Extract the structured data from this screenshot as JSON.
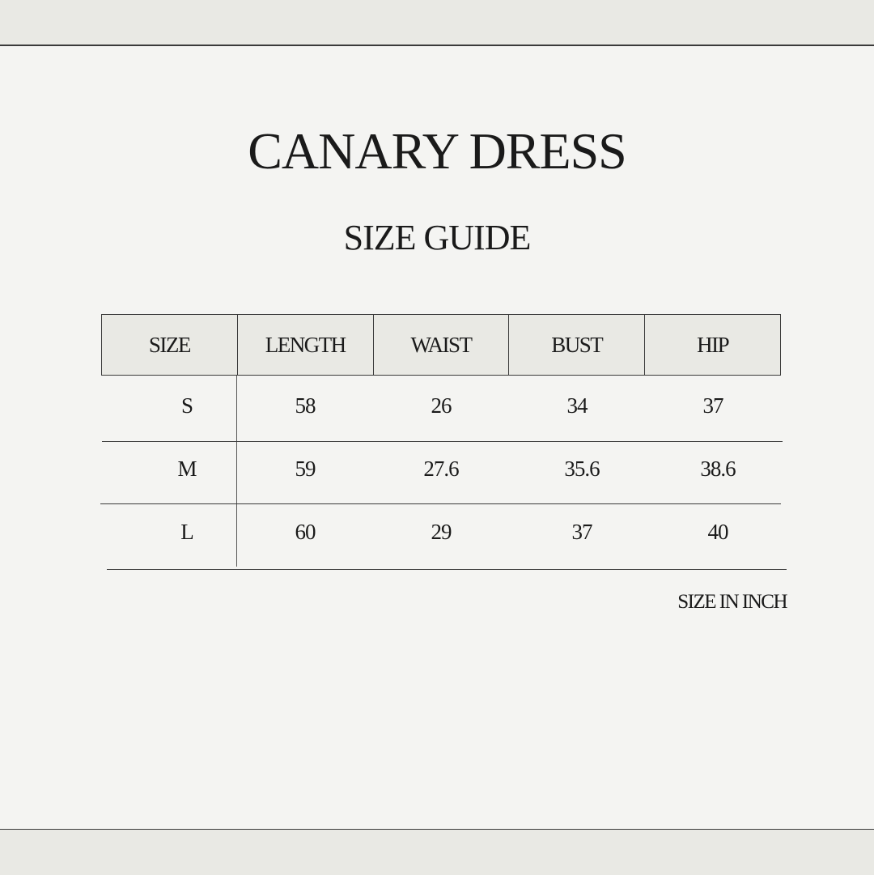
{
  "title": "CANARY DRESS",
  "subtitle": "SIZE GUIDE",
  "table": {
    "headers": [
      "SIZE",
      "LENGTH",
      "WAIST",
      "BUST",
      "HIP"
    ],
    "rows": [
      [
        "S",
        "58",
        "26",
        "34",
        "37"
      ],
      [
        "M",
        "59",
        "27.6",
        "35.6",
        "38.6"
      ],
      [
        "L",
        "60",
        "29",
        "37",
        "40"
      ]
    ]
  },
  "note": "SIZE IN INCH"
}
